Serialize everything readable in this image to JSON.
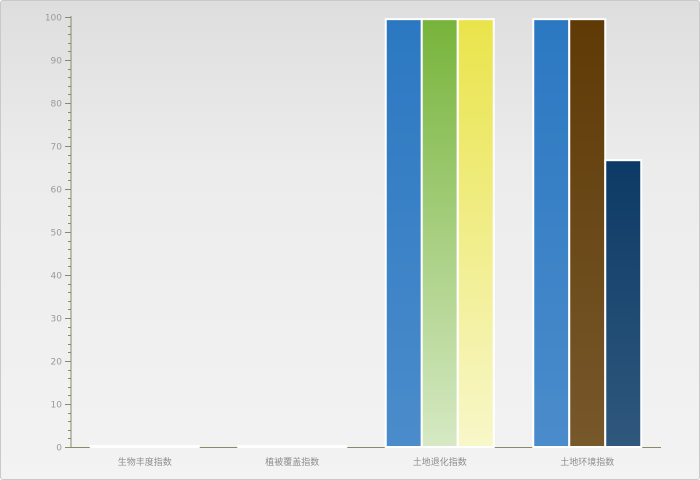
{
  "chart_data": {
    "type": "bar",
    "categories": [
      "生物丰度指数",
      "植被覆盖指数",
      "土地退化指数",
      "土地环境指数"
    ],
    "series": [
      {
        "color": "#2b78c2",
        "values": [
          0,
          0,
          99.5,
          99.5
        ]
      },
      {
        "color": "#77b43a",
        "values": [
          0,
          0,
          99.5,
          99.5
        ]
      },
      {
        "color": "#e9e44a",
        "values": [
          0,
          0,
          99.5,
          66.7
        ]
      }
    ],
    "bar_colors_by_category": [
      [
        "#2b78c2",
        "#77b43a",
        "#e9e44a"
      ],
      [
        "#2b78c2",
        "#77b43a",
        "#e9e44a"
      ],
      [
        "#2b78c2",
        "#77b43a",
        "#e9e44a"
      ],
      [
        "#2b78c2",
        "#5f3a06",
        "#0c3a66"
      ]
    ],
    "yticks": [
      0,
      10,
      20,
      30,
      40,
      50,
      60,
      70,
      80,
      90,
      100
    ],
    "ylim": [
      0,
      100
    ],
    "title": "",
    "xlabel": "",
    "ylabel": "",
    "legend": false,
    "grid": false
  }
}
